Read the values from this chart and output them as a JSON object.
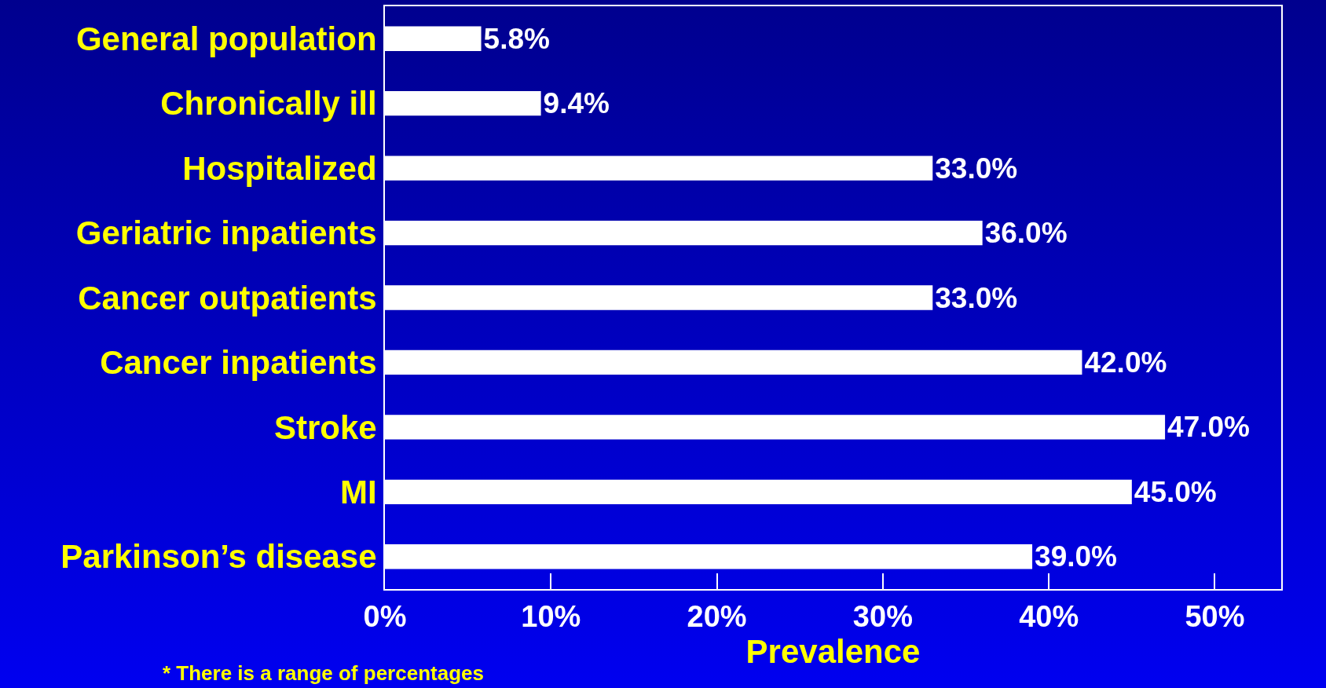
{
  "chart_data": {
    "type": "bar",
    "orientation": "horizontal",
    "xlabel": "Prevalence",
    "categories": [
      "General population",
      "Chronically ill",
      "Hospitalized",
      "Geriatric inpatients",
      "Cancer outpatients",
      "Cancer inpatients",
      "Stroke",
      "MI",
      "Parkinson’s disease"
    ],
    "values": [
      5.8,
      9.4,
      33.0,
      36.0,
      33.0,
      42.0,
      47.0,
      45.0,
      39.0
    ],
    "value_labels": [
      "5.8%",
      "9.4%",
      "33.0%",
      "36.0%",
      "33.0%",
      "42.0%",
      "47.0%",
      "45.0%",
      "39.0%"
    ],
    "color": "#ffffff",
    "xlim": [
      0,
      54
    ],
    "xticks": [
      {
        "value": 0,
        "label": "0%"
      },
      {
        "value": 10,
        "label": "10%"
      },
      {
        "value": 20,
        "label": "20%"
      },
      {
        "value": 30,
        "label": "30%"
      },
      {
        "value": 40,
        "label": "40%"
      },
      {
        "value": 50,
        "label": "50%"
      }
    ],
    "grid": false,
    "annotations": [
      "* There is a range of percentages"
    ]
  }
}
